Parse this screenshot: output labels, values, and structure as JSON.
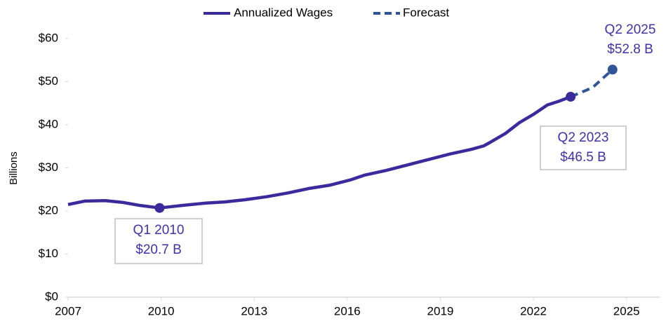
{
  "chart_data": {
    "type": "line",
    "y_label": "Billions",
    "series": [
      {
        "name": "Annualized Wages",
        "color": "#3a2a9c",
        "dashed": false,
        "x": [
          2007.0,
          2007.55,
          2008.2,
          2008.75,
          2009.3,
          2009.95,
          2010.7,
          2011.4,
          2012.05,
          2012.7,
          2013.4,
          2014.1,
          2014.75,
          2015.45,
          2016.1,
          2016.55,
          2017.25,
          2017.9,
          2018.6,
          2019.3,
          2020.0,
          2020.4,
          2020.65,
          2021.1,
          2021.55,
          2022.0,
          2022.45,
          2022.8,
          2023.2
        ],
        "values": [
          21.5,
          22.3,
          22.4,
          22.0,
          21.3,
          20.7,
          21.3,
          21.8,
          22.1,
          22.6,
          23.3,
          24.2,
          25.2,
          26.0,
          27.2,
          28.3,
          29.4,
          30.6,
          31.9,
          33.2,
          34.3,
          35.1,
          36.1,
          38.0,
          40.5,
          42.4,
          44.6,
          45.4,
          46.5
        ]
      },
      {
        "name": "Forecast",
        "color": "#2f5597",
        "dashed": true,
        "x": [
          2023.2,
          2023.9,
          2024.55
        ],
        "values": [
          46.5,
          48.6,
          52.8
        ]
      }
    ],
    "annotations": [
      {
        "lines": [
          "Q1 2010",
          "$20.7 B"
        ],
        "series": 0,
        "index": 5
      },
      {
        "lines": [
          "Q2 2023",
          "$46.5 B"
        ],
        "series": 0,
        "index": 28
      },
      {
        "lines": [
          "Q2 2025",
          "$52.8 B"
        ],
        "series": 1,
        "index": 2
      }
    ],
    "xlim": [
      2007,
      2026.07
    ],
    "xticks": [
      2007,
      2010,
      2013,
      2016,
      2019,
      2022,
      2025
    ],
    "ylim": [
      0,
      60
    ],
    "yticks": [
      {
        "value": 0,
        "label": "$0"
      },
      {
        "value": 10,
        "label": "$10"
      },
      {
        "value": 20,
        "label": "$20"
      },
      {
        "value": 30,
        "label": "$30"
      },
      {
        "value": 40,
        "label": "$40"
      },
      {
        "value": 50,
        "label": "$50"
      },
      {
        "value": 60,
        "label": "$60"
      }
    ],
    "legend": "top"
  }
}
